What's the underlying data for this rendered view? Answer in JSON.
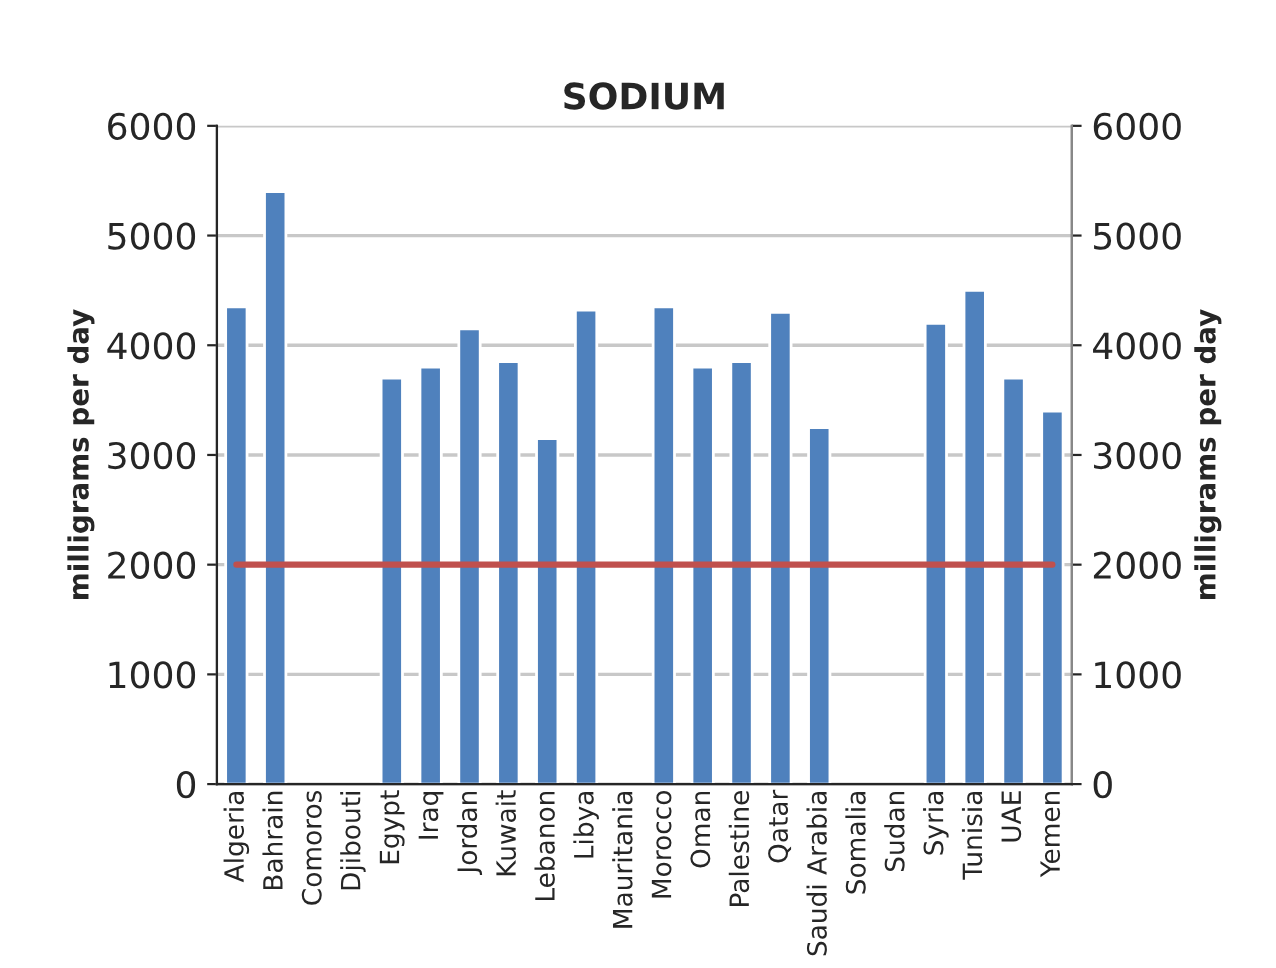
{
  "chart_data": {
    "type": "bar",
    "title": "SODIUM",
    "ylabel": "milligrams per day",
    "y2label": "milligrams per day",
    "categories": [
      "Algeria",
      "Bahrain",
      "Comoros",
      "Djibouti",
      "Egypt",
      "Iraq",
      "Jordan",
      "Kuwait",
      "Lebanon",
      "Libya",
      "Mauritania",
      "Morocco",
      "Oman",
      "Palestine",
      "Qatar",
      "Saudi Arabia",
      "Somalia",
      "Sudan",
      "Syria",
      "Tunisia",
      "UAE",
      "Yemen"
    ],
    "values": [
      4350,
      5400,
      null,
      null,
      3700,
      3800,
      4150,
      3850,
      3150,
      4320,
      null,
      4350,
      3800,
      3850,
      4300,
      3250,
      null,
      null,
      4200,
      4500,
      3700,
      3400
    ],
    "color": "#4f81bd",
    "ylim": [
      0,
      6000
    ],
    "yticks": [
      0,
      1000,
      2000,
      3000,
      4000,
      5000,
      6000
    ],
    "y2lim": [
      0,
      6000
    ],
    "y2ticks": [
      0,
      1000,
      2000,
      3000,
      4000,
      5000,
      6000
    ],
    "ref_lines": [
      {
        "axis": "y",
        "value": 2000,
        "color": "#c0504d"
      }
    ],
    "grid": "y",
    "legend": false
  }
}
